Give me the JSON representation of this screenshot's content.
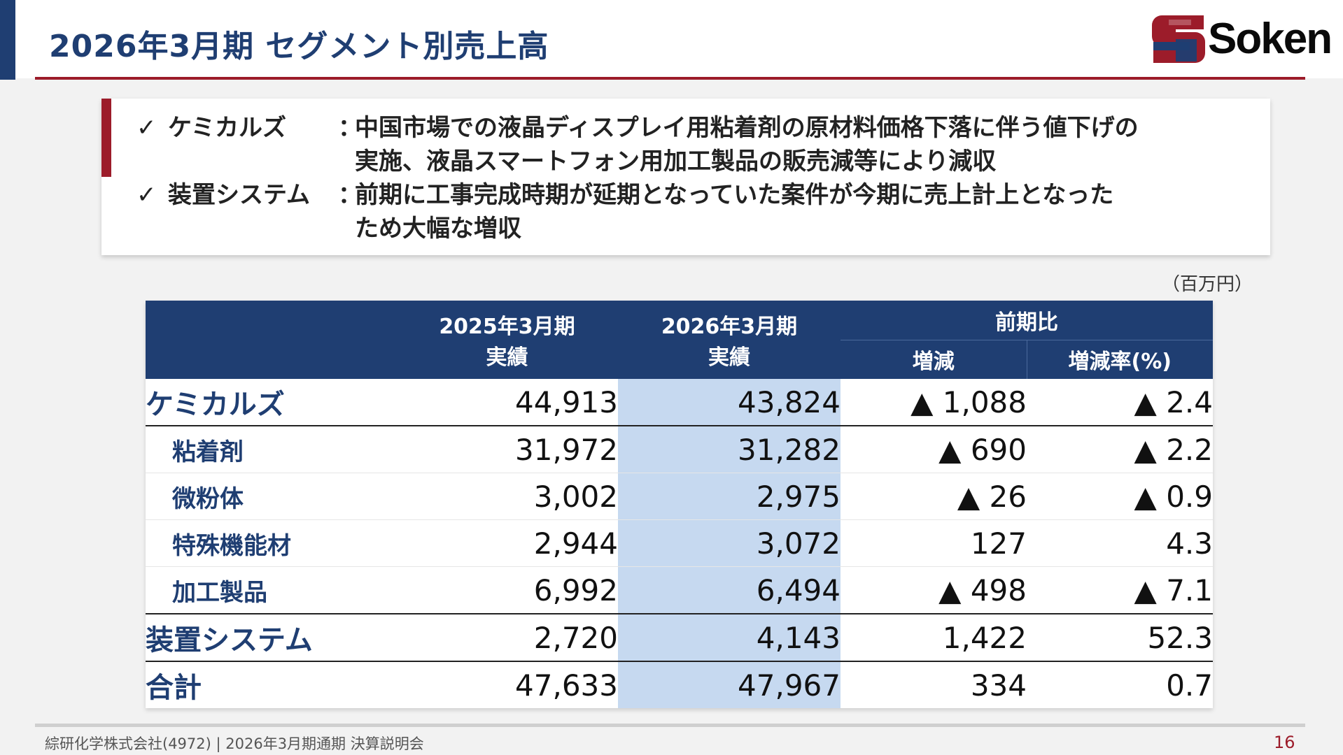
{
  "slide": {
    "title": "2026年3月期 セグメント別売上高",
    "logo_text": "Soken",
    "unit": "（百万円）",
    "colors": {
      "navy": "#1f3e72",
      "crimson": "#9c1c2a",
      "highlight_col": "#c6d9f0"
    }
  },
  "summary": {
    "check_mark": "✓",
    "notes": [
      {
        "label": "ケミカルズ",
        "colon": "：",
        "line1": "中国市場での液晶ディスプレイ用粘着剤の原材料価格下落に伴う値下げの",
        "line2": "実施、液晶スマートフォン用加工製品の販売減等により減収"
      },
      {
        "label": "装置システム",
        "colon": "：",
        "line1": "前期に工事完成時期が延期となっていた案件が今期に売上計上となった",
        "line2": "ため大幅な増収"
      }
    ]
  },
  "table": {
    "headers": {
      "prev_line1": "2025年3月期",
      "prev_line2": "実績",
      "curr_line1": "2026年3月期",
      "curr_line2": "実績",
      "yoy": "前期比",
      "change": "増減",
      "rate": "増減率(%)"
    },
    "rows": [
      {
        "name": "ケミカルズ",
        "prev": "44,913",
        "curr": "43,824",
        "change": "▲ 1,088",
        "rate": "▲ 2.4"
      },
      {
        "name": "粘着剤",
        "prev": "31,972",
        "curr": "31,282",
        "change": "▲ 690",
        "rate": "▲ 2.2"
      },
      {
        "name": "微粉体",
        "prev": "3,002",
        "curr": "2,975",
        "change": "▲ 26",
        "rate": "▲ 0.9"
      },
      {
        "name": "特殊機能材",
        "prev": "2,944",
        "curr": "3,072",
        "change": "127",
        "rate": "4.3"
      },
      {
        "name": "加工製品",
        "prev": "6,992",
        "curr": "6,494",
        "change": "▲ 498",
        "rate": "▲ 7.1"
      },
      {
        "name": "装置システム",
        "prev": "2,720",
        "curr": "4,143",
        "change": "1,422",
        "rate": "52.3"
      },
      {
        "name": "合計",
        "prev": "47,633",
        "curr": "47,967",
        "change": "334",
        "rate": "0.7"
      }
    ]
  },
  "footer": {
    "text": "綜研化学株式会社(4972) | 2026年3月期通期 決算説明会",
    "page_number": "16"
  }
}
